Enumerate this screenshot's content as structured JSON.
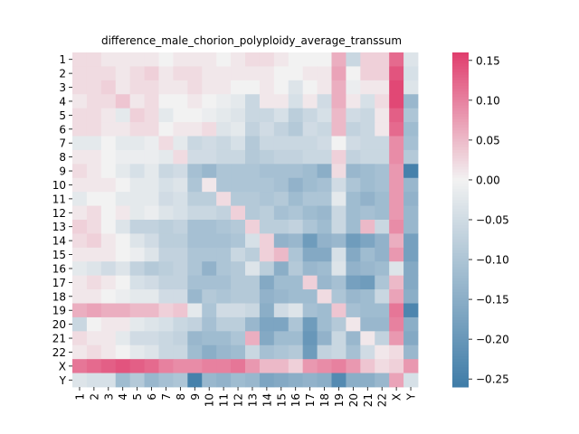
{
  "chart_data": {
    "type": "heatmap",
    "title": "difference_male_chorion_polyploidy_average_transsum",
    "xlabel": "",
    "ylabel": "",
    "labels": [
      "1",
      "2",
      "3",
      "4",
      "5",
      "6",
      "7",
      "8",
      "9",
      "10",
      "11",
      "12",
      "13",
      "14",
      "15",
      "16",
      "17",
      "18",
      "19",
      "20",
      "21",
      "22",
      "X",
      "Y"
    ],
    "colorbar": {
      "min": -0.26,
      "max": 0.16,
      "ticks": [
        0.15,
        0.1,
        0.05,
        0.0,
        -0.05,
        -0.1,
        -0.15,
        -0.2,
        -0.25
      ],
      "tick_labels": [
        "0.15",
        "0.10",
        "0.05",
        "0.00",
        "−0.05",
        "−0.10",
        "−0.15",
        "−0.20",
        "−0.25"
      ],
      "colors": {
        "low": "#3f7ca8",
        "mid": "#f2f2f2",
        "high": "#e03d6d"
      }
    },
    "matrix": [
      [
        0.02,
        0.02,
        0.01,
        0.01,
        0.01,
        0.01,
        0.0,
        0.01,
        0.01,
        0.01,
        0.0,
        0.01,
        0.02,
        0.02,
        0.01,
        0.0,
        0.0,
        0.0,
        0.06,
        -0.06,
        0.03,
        0.03,
        0.12,
        -0.03
      ],
      [
        0.02,
        0.02,
        0.02,
        0.01,
        0.02,
        0.03,
        0.01,
        0.02,
        0.02,
        0.01,
        0.01,
        0.01,
        0.01,
        0.01,
        0.0,
        0.0,
        0.01,
        0.01,
        0.07,
        0.0,
        0.03,
        0.03,
        0.14,
        -0.04
      ],
      [
        0.02,
        0.02,
        0.03,
        0.01,
        0.02,
        0.02,
        0.01,
        0.01,
        0.02,
        0.01,
        0.01,
        0.0,
        0.0,
        0.01,
        0.0,
        -0.03,
        0.0,
        0.01,
        0.06,
        -0.01,
        0.01,
        0.01,
        0.15,
        -0.03
      ],
      [
        0.01,
        0.02,
        0.02,
        0.04,
        0.01,
        0.02,
        0.0,
        0.0,
        0.01,
        0.0,
        -0.01,
        -0.02,
        -0.06,
        0.01,
        0.01,
        -0.04,
        0.01,
        -0.05,
        0.06,
        0.01,
        -0.04,
        0.02,
        0.15,
        -0.13
      ],
      [
        0.02,
        0.02,
        0.01,
        -0.02,
        0.03,
        0.02,
        -0.02,
        0.0,
        0.0,
        -0.01,
        -0.02,
        -0.03,
        -0.06,
        -0.06,
        -0.04,
        -0.08,
        -0.06,
        -0.04,
        0.05,
        -0.05,
        -0.06,
        0.01,
        0.13,
        -0.1
      ],
      [
        0.02,
        0.02,
        0.01,
        0.01,
        0.02,
        0.02,
        0.0,
        0.01,
        0.01,
        0.02,
        -0.03,
        -0.02,
        -0.07,
        -0.05,
        -0.07,
        -0.09,
        -0.05,
        -0.06,
        0.05,
        -0.07,
        -0.06,
        0.01,
        0.12,
        -0.12
      ],
      [
        -0.02,
        -0.02,
        0.0,
        -0.02,
        -0.02,
        -0.01,
        0.02,
        -0.02,
        -0.06,
        -0.05,
        -0.06,
        -0.04,
        -0.09,
        -0.06,
        -0.06,
        -0.06,
        -0.06,
        -0.05,
        0.0,
        -0.05,
        -0.06,
        -0.06,
        0.09,
        -0.11
      ],
      [
        0.01,
        0.01,
        0.0,
        -0.01,
        -0.01,
        -0.01,
        -0.02,
        0.02,
        -0.05,
        -0.05,
        -0.06,
        -0.06,
        -0.09,
        -0.08,
        -0.07,
        -0.07,
        -0.06,
        -0.06,
        0.03,
        -0.07,
        -0.06,
        -0.06,
        0.09,
        -0.09
      ],
      [
        0.02,
        0.01,
        0.0,
        -0.02,
        -0.04,
        -0.02,
        -0.06,
        -0.05,
        -0.11,
        -0.13,
        -0.1,
        -0.1,
        -0.1,
        -0.11,
        -0.11,
        -0.11,
        -0.12,
        -0.15,
        0.02,
        -0.13,
        -0.12,
        -0.11,
        0.08,
        -0.25
      ],
      [
        0.01,
        0.01,
        0.01,
        0.0,
        -0.02,
        -0.02,
        -0.04,
        -0.03,
        -0.1,
        0.01,
        -0.1,
        -0.1,
        -0.1,
        -0.1,
        -0.11,
        -0.14,
        -0.12,
        -0.11,
        -0.05,
        -0.1,
        -0.12,
        -0.11,
        0.08,
        -0.13
      ],
      [
        -0.02,
        0.0,
        0.0,
        -0.02,
        -0.02,
        -0.02,
        -0.05,
        -0.04,
        -0.08,
        -0.08,
        0.02,
        -0.09,
        -0.09,
        -0.1,
        -0.09,
        -0.12,
        -0.1,
        -0.1,
        -0.02,
        -0.12,
        -0.14,
        -0.12,
        0.08,
        -0.14
      ],
      [
        0.01,
        0.02,
        0.0,
        0.01,
        -0.02,
        -0.01,
        -0.03,
        -0.04,
        -0.06,
        -0.06,
        -0.07,
        0.03,
        -0.09,
        -0.08,
        -0.11,
        -0.1,
        -0.12,
        -0.13,
        -0.06,
        -0.12,
        -0.11,
        -0.12,
        0.08,
        -0.13
      ],
      [
        0.03,
        0.02,
        0.0,
        -0.03,
        -0.07,
        -0.07,
        -0.08,
        -0.07,
        -0.11,
        -0.11,
        -0.1,
        -0.09,
        0.03,
        -0.08,
        -0.08,
        -0.07,
        -0.1,
        -0.12,
        -0.06,
        -0.12,
        0.05,
        -0.06,
        0.09,
        -0.13
      ],
      [
        0.02,
        0.03,
        0.01,
        0.0,
        -0.03,
        -0.05,
        -0.08,
        -0.08,
        -0.11,
        -0.11,
        -0.11,
        -0.1,
        -0.04,
        0.03,
        -0.14,
        -0.13,
        -0.19,
        -0.14,
        -0.13,
        -0.19,
        -0.17,
        -0.14,
        0.06,
        -0.18
      ],
      [
        0.01,
        0.01,
        0.01,
        0.0,
        -0.01,
        -0.03,
        -0.07,
        -0.07,
        -0.1,
        -0.1,
        -0.1,
        -0.06,
        -0.08,
        0.03,
        0.05,
        -0.1,
        -0.16,
        -0.16,
        -0.04,
        -0.16,
        -0.12,
        -0.14,
        0.08,
        -0.18
      ],
      [
        -0.02,
        -0.03,
        -0.05,
        -0.03,
        -0.07,
        -0.09,
        -0.08,
        -0.07,
        -0.1,
        -0.14,
        -0.1,
        -0.09,
        -0.03,
        -0.08,
        -0.15,
        -0.09,
        -0.13,
        -0.12,
        -0.03,
        -0.14,
        -0.13,
        -0.12,
        -0.03,
        -0.16
      ],
      [
        0.01,
        0.02,
        0.01,
        0.0,
        -0.04,
        -0.05,
        -0.07,
        -0.07,
        -0.11,
        -0.11,
        -0.11,
        -0.09,
        -0.09,
        -0.16,
        -0.12,
        -0.12,
        0.03,
        -0.13,
        -0.11,
        -0.18,
        -0.19,
        -0.1,
        0.05,
        -0.16
      ],
      [
        0.01,
        0.01,
        0.0,
        -0.01,
        -0.02,
        -0.02,
        -0.05,
        -0.05,
        -0.13,
        -0.09,
        -0.1,
        -0.09,
        -0.09,
        -0.14,
        -0.13,
        -0.12,
        -0.12,
        0.02,
        -0.1,
        -0.13,
        -0.12,
        -0.06,
        0.07,
        -0.15
      ],
      [
        0.06,
        0.07,
        0.06,
        0.06,
        0.05,
        0.05,
        0.03,
        0.04,
        -0.02,
        -0.1,
        -0.05,
        -0.05,
        -0.06,
        -0.15,
        -0.05,
        -0.03,
        -0.11,
        -0.12,
        0.04,
        -0.11,
        -0.12,
        -0.12,
        0.11,
        -0.24
      ],
      [
        -0.06,
        0.0,
        0.01,
        0.01,
        -0.02,
        -0.03,
        -0.04,
        -0.06,
        -0.07,
        -0.11,
        -0.08,
        -0.08,
        -0.13,
        -0.17,
        -0.17,
        -0.1,
        -0.19,
        -0.12,
        -0.09,
        0.01,
        -0.13,
        -0.13,
        0.1,
        -0.15
      ],
      [
        0.02,
        0.01,
        0.01,
        -0.02,
        -0.05,
        -0.05,
        -0.06,
        -0.07,
        -0.13,
        -0.12,
        -0.12,
        -0.1,
        0.06,
        -0.16,
        -0.12,
        -0.12,
        -0.2,
        -0.14,
        -0.06,
        -0.13,
        0.01,
        -0.07,
        0.08,
        -0.16
      ],
      [
        0.01,
        0.02,
        0.01,
        0.0,
        -0.02,
        -0.03,
        -0.06,
        -0.06,
        -0.12,
        -0.15,
        -0.13,
        -0.12,
        -0.06,
        -0.11,
        -0.1,
        -0.09,
        -0.19,
        -0.07,
        -0.06,
        -0.11,
        -0.05,
        0.01,
        0.02,
        -0.13
      ],
      [
        0.11,
        0.12,
        0.13,
        0.14,
        0.13,
        0.12,
        0.1,
        0.09,
        0.09,
        0.1,
        0.1,
        0.11,
        0.08,
        0.05,
        0.05,
        0.03,
        0.08,
        0.09,
        0.1,
        0.08,
        0.04,
        0.02,
        0.03,
        0.08
      ],
      [
        -0.03,
        -0.04,
        -0.04,
        -0.12,
        -0.09,
        -0.13,
        -0.11,
        -0.1,
        -0.25,
        -0.13,
        -0.14,
        -0.12,
        -0.13,
        -0.17,
        -0.16,
        -0.15,
        -0.14,
        -0.15,
        -0.23,
        -0.15,
        -0.15,
        -0.13,
        0.07,
        -0.04
      ]
    ]
  }
}
